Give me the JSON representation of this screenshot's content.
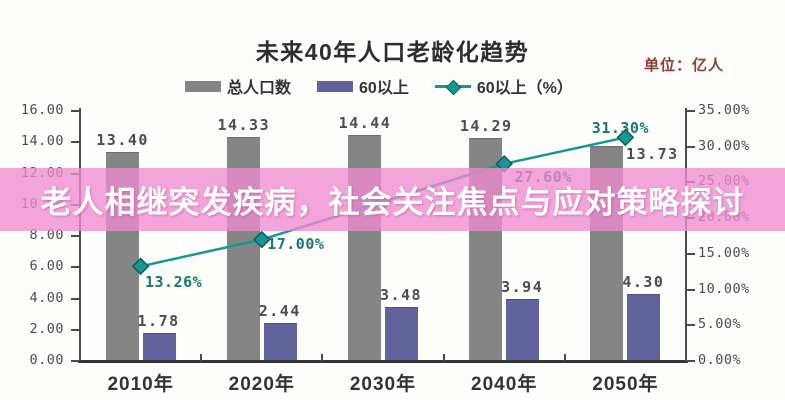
{
  "banner": {
    "text": "老人相继突发疾病，社会关注焦点与应对策略探讨",
    "bg_color": "#f08ad0",
    "text_color": "#ffffff"
  },
  "chart_data": {
    "type": "bar+line",
    "title": "未来40年人口老龄化趋势",
    "unit_label": "单位：亿人",
    "categories": [
      "2010年",
      "2020年",
      "2030年",
      "2040年",
      "2050年"
    ],
    "series": [
      {
        "name": "总人口数",
        "type": "bar",
        "axis": "left",
        "color": "#858585",
        "border_color": "#6e6e6e",
        "values": [
          13.4,
          14.33,
          14.44,
          14.29,
          13.73
        ],
        "labels": [
          "13.40",
          "14.33",
          "14.44",
          "14.29",
          "13.73"
        ]
      },
      {
        "name": "60以上",
        "type": "bar",
        "axis": "left",
        "color": "#62629d",
        "border_color": "#4f4f85",
        "values": [
          1.78,
          2.44,
          3.48,
          3.94,
          4.3
        ],
        "labels": [
          "1.78",
          "2.44",
          "3.48",
          "3.94",
          "4.30"
        ]
      },
      {
        "name": "60以上（%）",
        "type": "line",
        "axis": "right",
        "color": "#169890",
        "marker": "diamond",
        "values": [
          13.26,
          17.0,
          22.3,
          27.6,
          31.3
        ],
        "labels": [
          "13.26%",
          "17.00%",
          "",
          "27.60%",
          "31.30%"
        ]
      }
    ],
    "left_axis": {
      "min": 0,
      "max": 16,
      "step": 2
    },
    "right_axis": {
      "min": 0,
      "max": 35,
      "step": 5,
      "suffix": "%"
    },
    "grid": false,
    "legend_position": "top"
  }
}
